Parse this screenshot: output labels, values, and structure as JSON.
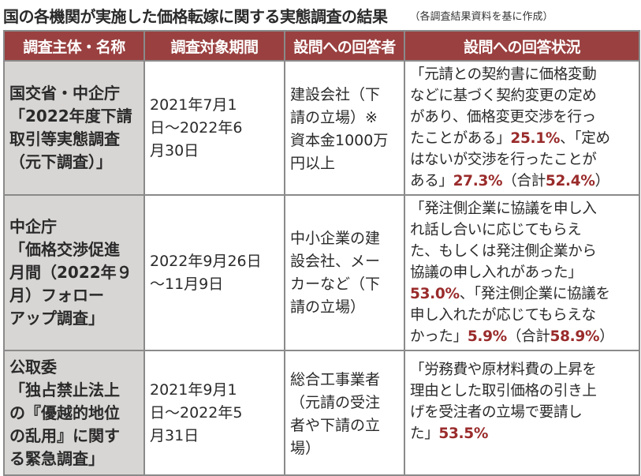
{
  "header": {
    "title": "国の各機関が実施した価格転嫁に関する実態調査の結果",
    "note": "（各調査結果資料を基に作成）"
  },
  "table": {
    "columns": [
      "調査主体・名称",
      "調査対象期間",
      "設問への回答者",
      "設問への回答状況"
    ],
    "rows": [
      {
        "name_lines": [
          "国交省・中企庁",
          "「2022年度下請",
          "取引等実態調査",
          "（元下調査）」"
        ],
        "period_lines": [
          "2021年7月1",
          "日～2022年6",
          "月30日"
        ],
        "respondent_lines": [
          "建設会社（下",
          "請の立場）※",
          "資本金1000万",
          "円以上"
        ],
        "answer": {
          "l1": "「元請との契約書に価格変動",
          "l2": "などに基づく契約変更の定め",
          "l3": "があり、価格変更交渉を行っ",
          "l4a": "たことがある」",
          "pct1": "25.1%",
          "l4b": "、「定め",
          "l5": "はないが交渉を行ったことが",
          "l6a": "ある」",
          "pct2": "27.3%",
          "l6b": "（合計",
          "total": "52.4%",
          "l6c": "）"
        }
      },
      {
        "name_lines": [
          "中企庁",
          "「価格交渉促進",
          "月間（2022年９",
          "月）フォロー",
          "アップ調査」"
        ],
        "period_lines": [
          "2022年9月26日",
          "～11月9日"
        ],
        "respondent_lines": [
          "中小企業の建",
          "設会社、メー",
          "カーなど（下",
          "請の立場）"
        ],
        "answer": {
          "l1": "「発注側企業に協議を申し入",
          "l2": "れ話し合いに応じてもらえ",
          "l3": "た、もしくは発注側企業から",
          "l4": "協議の申し入れがあった」",
          "pct1": "53.0%",
          "l5b": "、「発注側企業に協議を",
          "l6": "申し入れたが応じてもらえな",
          "l7a": "かった」",
          "pct2": "5.9%",
          "l7b": "（合計",
          "total": "58.9%",
          "l7c": "）"
        }
      },
      {
        "name_lines": [
          "公取委",
          "「独占禁止法上",
          "の『優越的地位",
          "の乱用』に関す",
          "る緊急調査」"
        ],
        "period_lines": [
          "2021年9月1",
          "日～2022年5",
          "月31日"
        ],
        "respondent_lines": [
          "総合工事業者",
          "（元請の受注",
          "者や下請の立",
          "場）"
        ],
        "answer": {
          "l1": "「労務費や原材料費の上昇を",
          "l2": "理由とした取引価格の引き上",
          "l3": "げを受注者の立場で要請し",
          "l4a": "た」",
          "pct1": "53.5%"
        }
      }
    ]
  }
}
